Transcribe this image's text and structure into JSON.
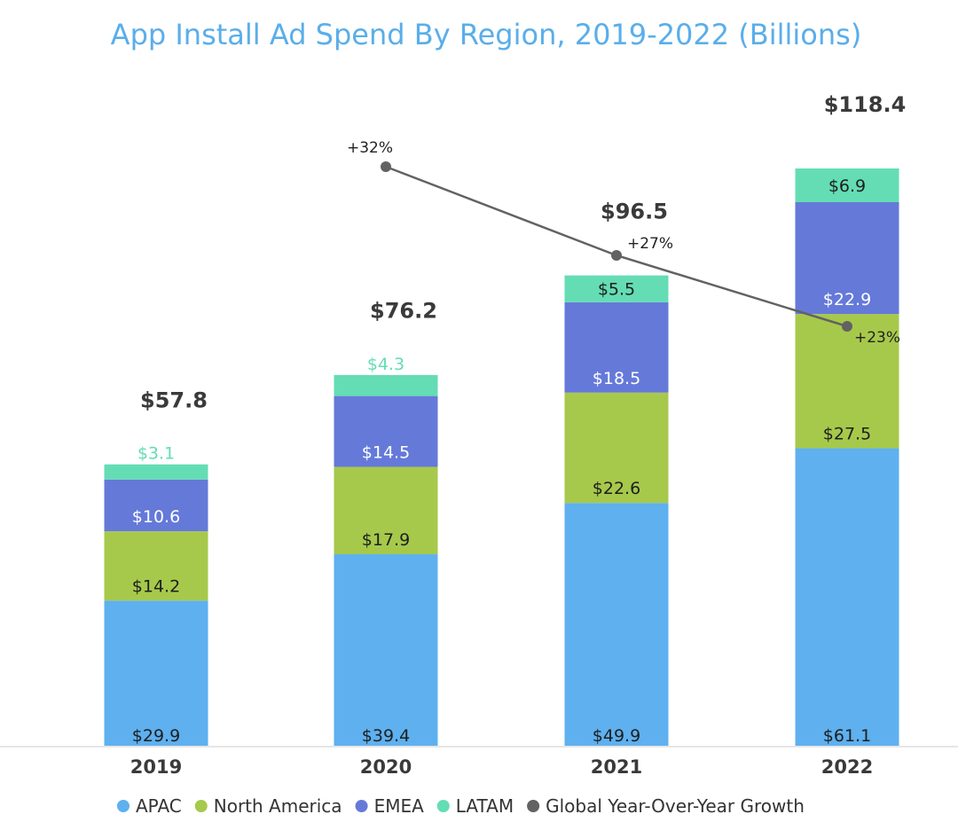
{
  "chart_data": {
    "type": "bar",
    "stacked": true,
    "title": "App Install Ad Spend By Region, 2019-2022 (Billions)",
    "xlabel": "",
    "ylabel": "",
    "categories": [
      "2019",
      "2020",
      "2021",
      "2022"
    ],
    "ylim": [
      0,
      118.4
    ],
    "grid": false,
    "series": [
      {
        "name": "APAC",
        "color": "#5eb0ef",
        "label_color": "#1e1e1e",
        "values": [
          29.9,
          39.4,
          49.9,
          61.1
        ],
        "labels": [
          "$29.9",
          "$39.4",
          "$49.9",
          "$61.1"
        ]
      },
      {
        "name": "North America",
        "color": "#a6c94b",
        "label_color": "#1e1e1e",
        "values": [
          14.2,
          17.9,
          22.6,
          27.5
        ],
        "labels": [
          "$14.2",
          "$17.9",
          "$22.6",
          "$27.5"
        ]
      },
      {
        "name": "EMEA",
        "color": "#6579d9",
        "label_color": "#ffffff",
        "values": [
          10.6,
          14.5,
          18.5,
          22.9
        ],
        "labels": [
          "$10.6",
          "$14.5",
          "$18.5",
          "$22.9"
        ]
      },
      {
        "name": "LATAM",
        "color": "#64ddb4",
        "label_color": "#1e1e1e",
        "values": [
          3.1,
          4.3,
          5.5,
          6.9
        ],
        "labels": [
          "$3.1",
          "$4.3",
          "$5.5",
          "$6.9"
        ]
      }
    ],
    "totals": [
      57.8,
      76.2,
      96.5,
      118.4
    ],
    "total_labels": [
      "$57.8",
      "$76.2",
      "$96.5",
      "$118.4"
    ],
    "line_series": {
      "name": "Global Year-Over-Year Growth",
      "color": "#626262",
      "categories": [
        "2020",
        "2021",
        "2022"
      ],
      "values": [
        32,
        27,
        23
      ],
      "labels": [
        "+32%",
        "+27%",
        "+23%"
      ]
    },
    "legend": {
      "position": "bottom",
      "items": [
        {
          "name": "APAC",
          "color": "#5eb0ef"
        },
        {
          "name": "North America",
          "color": "#a6c94b"
        },
        {
          "name": "EMEA",
          "color": "#6579d9"
        },
        {
          "name": "LATAM",
          "color": "#64ddb4"
        },
        {
          "name": "Global Year-Over-Year Growth",
          "color": "#626262"
        }
      ]
    }
  }
}
